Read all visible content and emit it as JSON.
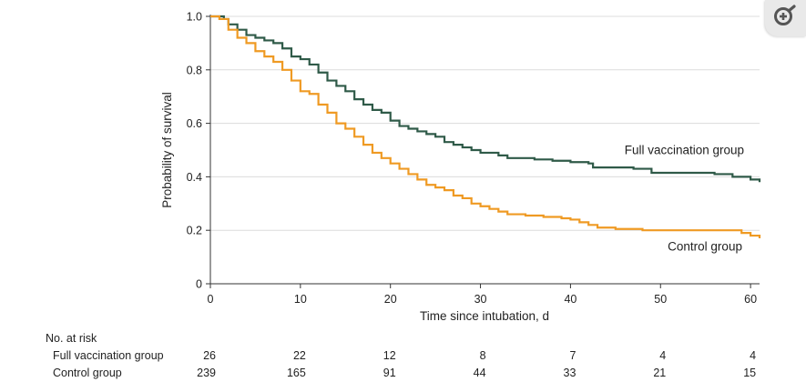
{
  "chart_data": {
    "type": "line",
    "title": "",
    "xlabel": "Time since intubation, d",
    "ylabel": "Probability of survival",
    "xlim": [
      0,
      61
    ],
    "ylim": [
      0,
      1.0
    ],
    "x_ticks": [
      0,
      10,
      20,
      30,
      40,
      50,
      60
    ],
    "x_tick_labels": [
      "0",
      "10",
      "20",
      "30",
      "40",
      "50",
      "60"
    ],
    "y_ticks": [
      0,
      0.2,
      0.4,
      0.6,
      0.8,
      1.0
    ],
    "y_tick_labels": [
      "0",
      "0.2",
      "0.4",
      "0.6",
      "0.8",
      "1.0"
    ],
    "grid": "horizontal",
    "series": [
      {
        "name": "Full vaccination group",
        "color": "#2f5a48",
        "points": [
          [
            0,
            1.0
          ],
          [
            1.5,
            0.99
          ],
          [
            2,
            0.97
          ],
          [
            3,
            0.95
          ],
          [
            4,
            0.93
          ],
          [
            5,
            0.92
          ],
          [
            6,
            0.91
          ],
          [
            7,
            0.9
          ],
          [
            8,
            0.88
          ],
          [
            9,
            0.85
          ],
          [
            10,
            0.84
          ],
          [
            11,
            0.82
          ],
          [
            12,
            0.79
          ],
          [
            13,
            0.76
          ],
          [
            14,
            0.74
          ],
          [
            15,
            0.72
          ],
          [
            16,
            0.69
          ],
          [
            17,
            0.67
          ],
          [
            18,
            0.65
          ],
          [
            19,
            0.64
          ],
          [
            20,
            0.61
          ],
          [
            21,
            0.59
          ],
          [
            22,
            0.58
          ],
          [
            23,
            0.57
          ],
          [
            24,
            0.56
          ],
          [
            25,
            0.55
          ],
          [
            26,
            0.53
          ],
          [
            27,
            0.52
          ],
          [
            28,
            0.51
          ],
          [
            29,
            0.5
          ],
          [
            30,
            0.49
          ],
          [
            32,
            0.48
          ],
          [
            33,
            0.47
          ],
          [
            36,
            0.465
          ],
          [
            38,
            0.46
          ],
          [
            40,
            0.455
          ],
          [
            42,
            0.45
          ],
          [
            42.5,
            0.435
          ],
          [
            47,
            0.43
          ],
          [
            49,
            0.415
          ],
          [
            55,
            0.415
          ],
          [
            56,
            0.41
          ],
          [
            58,
            0.4
          ],
          [
            60,
            0.39
          ],
          [
            61,
            0.38
          ]
        ]
      },
      {
        "name": "Control group",
        "color": "#ef9a23",
        "points": [
          [
            0,
            1.0
          ],
          [
            1,
            0.99
          ],
          [
            2,
            0.95
          ],
          [
            3,
            0.92
          ],
          [
            4,
            0.9
          ],
          [
            5,
            0.87
          ],
          [
            6,
            0.85
          ],
          [
            7,
            0.83
          ],
          [
            8,
            0.8
          ],
          [
            9,
            0.76
          ],
          [
            10,
            0.72
          ],
          [
            11,
            0.71
          ],
          [
            12,
            0.67
          ],
          [
            13,
            0.64
          ],
          [
            14,
            0.6
          ],
          [
            15,
            0.58
          ],
          [
            16,
            0.55
          ],
          [
            17,
            0.52
          ],
          [
            18,
            0.49
          ],
          [
            19,
            0.47
          ],
          [
            20,
            0.45
          ],
          [
            21,
            0.43
          ],
          [
            22,
            0.41
          ],
          [
            23,
            0.39
          ],
          [
            24,
            0.37
          ],
          [
            25,
            0.36
          ],
          [
            26,
            0.35
          ],
          [
            27,
            0.33
          ],
          [
            28,
            0.32
          ],
          [
            29,
            0.3
          ],
          [
            30,
            0.29
          ],
          [
            31,
            0.28
          ],
          [
            32,
            0.27
          ],
          [
            33,
            0.26
          ],
          [
            35,
            0.255
          ],
          [
            37,
            0.25
          ],
          [
            39,
            0.245
          ],
          [
            40,
            0.24
          ],
          [
            41,
            0.23
          ],
          [
            42,
            0.22
          ],
          [
            43,
            0.21
          ],
          [
            45,
            0.205
          ],
          [
            48,
            0.2
          ],
          [
            58,
            0.2
          ],
          [
            59,
            0.19
          ],
          [
            60,
            0.18
          ],
          [
            61,
            0.17
          ]
        ]
      }
    ],
    "annotations": [
      {
        "text": "Full vaccination group",
        "x": 46,
        "y": 0.485
      },
      {
        "text": "Control group",
        "x": 50.8,
        "y": 0.125
      }
    ],
    "risk_table": {
      "title": "No. at risk",
      "rows": [
        {
          "label": "Full vaccination group",
          "values": [
            "26",
            "22",
            "12",
            "8",
            "7",
            "4",
            "4"
          ]
        },
        {
          "label": "Control group",
          "values": [
            "239",
            "165",
            "91",
            "44",
            "33",
            "21",
            "15"
          ]
        }
      ]
    }
  },
  "ui": {
    "zoom_button_icon": "zoom-in-icon"
  }
}
